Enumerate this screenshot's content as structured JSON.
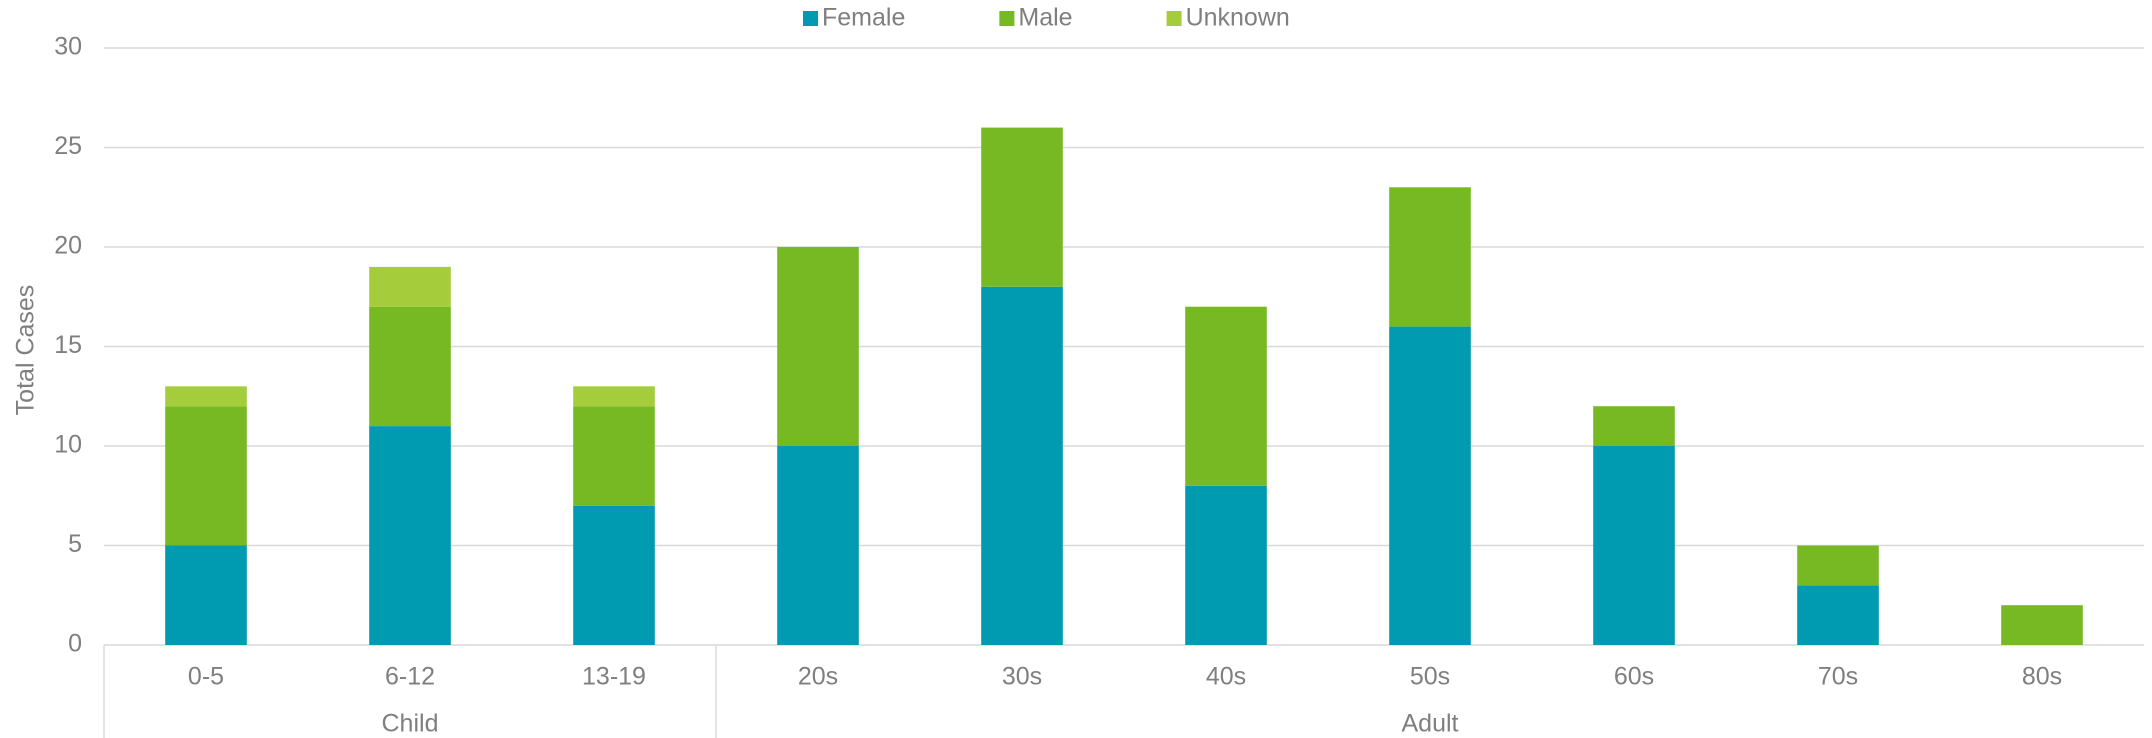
{
  "chart_data": {
    "type": "stacked_bar",
    "y_label": "Total Cases",
    "categories": [
      "0-5",
      "6-12",
      "13-19",
      "20s",
      "30s",
      "40s",
      "50s",
      "60s",
      "70s",
      "80s"
    ],
    "category_groups": [
      "Child",
      "Child",
      "Child",
      "Adult",
      "Adult",
      "Adult",
      "Adult",
      "Adult",
      "Adult",
      "Adult"
    ],
    "series": [
      {
        "name": "Female",
        "color": "#009bb1",
        "values": [
          5,
          11,
          7,
          10,
          18,
          8,
          16,
          10,
          3,
          0
        ]
      },
      {
        "name": "Male",
        "color": "#76b923",
        "values": [
          7,
          6,
          5,
          10,
          8,
          9,
          7,
          2,
          2,
          2
        ]
      },
      {
        "name": "Unknown",
        "color": "#a5cd3b",
        "values": [
          1,
          2,
          1,
          0,
          0,
          0,
          0,
          0,
          0,
          0
        ]
      }
    ],
    "ylim": [
      0,
      30
    ],
    "yticks": [
      0,
      5,
      10,
      15,
      20,
      25,
      30
    ],
    "grid": true,
    "legend": "top"
  }
}
